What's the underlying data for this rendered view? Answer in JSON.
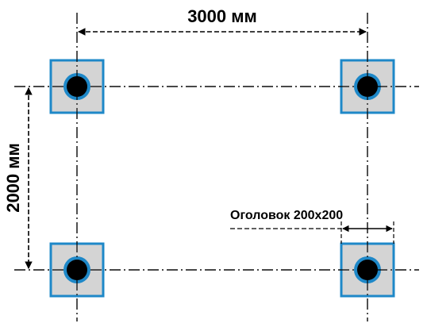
{
  "dimensions": {
    "horizontal_label": "3000 мм",
    "vertical_label": "2000 мм",
    "cap_label": "Оголовок 200x200"
  },
  "piles": [
    {
      "id": "top-left"
    },
    {
      "id": "top-right"
    },
    {
      "id": "bottom-left"
    },
    {
      "id": "bottom-right"
    }
  ],
  "colors": {
    "plate_fill": "#d4d4d4",
    "plate_border": "#1e88c8",
    "pipe_ring": "#1e88c8",
    "pipe_core": "#000000",
    "lines": "#000000",
    "background": "#ffffff"
  }
}
